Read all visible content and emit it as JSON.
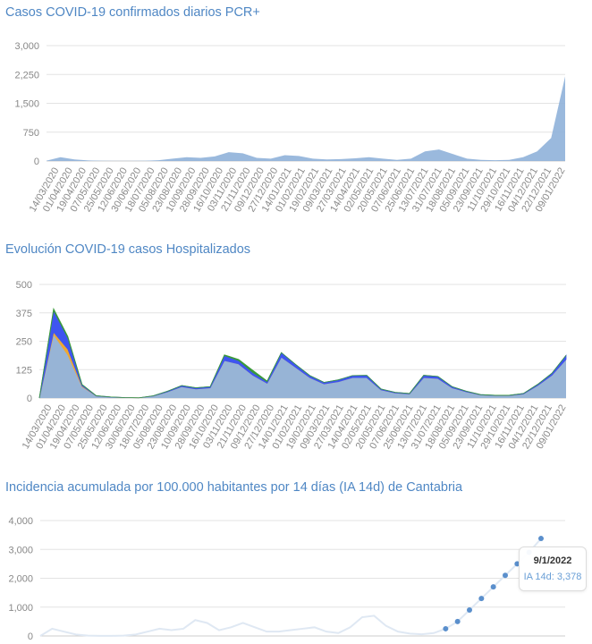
{
  "chart_data": [
    {
      "type": "area",
      "title": "Casos COVID-19 confirmados diarios PCR+",
      "ylim": [
        0,
        3000
      ],
      "yticks": [
        "0",
        "750",
        "1,500",
        "2,250",
        "3,000"
      ],
      "ytick_values": [
        0,
        750,
        1500,
        2250,
        3000
      ],
      "grid": true,
      "categories": [
        "14/03/2020",
        "01/04/2020",
        "19/04/2020",
        "07/05/2020",
        "25/05/2020",
        "12/06/2020",
        "30/06/2020",
        "18/07/2020",
        "05/08/2020",
        "23/08/2020",
        "10/09/2020",
        "28/09/2020",
        "16/10/2020",
        "03/11/2020",
        "21/11/2020",
        "09/12/2020",
        "27/12/2020",
        "14/01/2021",
        "01/02/2021",
        "19/02/2021",
        "09/03/2021",
        "27/03/2021",
        "14/04/2021",
        "02/05/2021",
        "20/05/2021",
        "07/06/2021",
        "25/06/2021",
        "13/07/2021",
        "31/07/2021",
        "18/08/2021",
        "05/09/2021",
        "23/09/2021",
        "11/10/2021",
        "29/10/2021",
        "16/11/2021",
        "04/12/2021",
        "22/12/2021",
        "09/01/2022"
      ],
      "series": [
        {
          "color": "#8fb1d9",
          "values": [
            10,
            100,
            40,
            15,
            5,
            3,
            3,
            5,
            20,
            60,
            100,
            80,
            120,
            230,
            200,
            80,
            60,
            150,
            130,
            60,
            40,
            50,
            70,
            100,
            60,
            30,
            60,
            250,
            300,
            180,
            60,
            30,
            20,
            30,
            100,
            250,
            600,
            2200
          ]
        }
      ]
    },
    {
      "type": "area",
      "title": "Evolución COVID-19 casos  Hospitalizados",
      "ylim": [
        0,
        500
      ],
      "yticks": [
        "0",
        "125",
        "250",
        "375",
        "500"
      ],
      "ytick_values": [
        0,
        125,
        250,
        375,
        500
      ],
      "grid": true,
      "stacked": true,
      "categories": [
        "14/03/2020",
        "01/04/2020",
        "19/04/2020",
        "07/05/2020",
        "25/05/2020",
        "12/06/2020",
        "30/06/2020",
        "18/07/2020",
        "05/08/2020",
        "23/08/2020",
        "10/09/2020",
        "28/09/2020",
        "16/10/2020",
        "03/11/2020",
        "21/11/2020",
        "09/12/2020",
        "27/12/2020",
        "14/01/2021",
        "01/02/2021",
        "19/02/2021",
        "09/03/2021",
        "27/03/2021",
        "14/04/2021",
        "02/05/2021",
        "20/05/2021",
        "07/06/2021",
        "25/06/2021",
        "13/07/2021",
        "31/07/2021",
        "18/08/2021",
        "05/09/2021",
        "23/09/2021",
        "11/10/2021",
        "29/10/2021",
        "16/11/2021",
        "04/12/2021",
        "22/12/2021",
        "09/01/2022"
      ],
      "series": [
        {
          "color": "#97b4d6",
          "values": [
            0,
            280,
            190,
            50,
            9,
            4,
            2,
            1,
            9,
            27,
            50,
            40,
            45,
            165,
            150,
            100,
            65,
            180,
            135,
            90,
            62,
            72,
            90,
            90,
            36,
            22,
            18,
            90,
            86,
            45,
            27,
            14,
            11,
            11,
            18,
            55,
            100,
            170
          ]
        },
        {
          "color": "#f0a830",
          "values": [
            0,
            10,
            25,
            3,
            0,
            0,
            0,
            0,
            0,
            0,
            0,
            0,
            0,
            0,
            0,
            0,
            0,
            0,
            0,
            0,
            0,
            0,
            0,
            0,
            0,
            0,
            0,
            0,
            0,
            0,
            0,
            0,
            0,
            0,
            0,
            0,
            0,
            0
          ]
        },
        {
          "color": "#3f55f0",
          "values": [
            0,
            95,
            50,
            6,
            1,
            1,
            0,
            0,
            1,
            3,
            5,
            5,
            5,
            22,
            15,
            12,
            7,
            20,
            13,
            9,
            7,
            8,
            9,
            10,
            4,
            3,
            2,
            10,
            9,
            5,
            3,
            1,
            1,
            1,
            2,
            5,
            9,
            18
          ]
        },
        {
          "color": "#3a9a3a",
          "values": [
            0,
            8,
            6,
            1,
            0,
            0,
            0,
            0,
            0,
            0,
            0,
            0,
            0,
            3,
            5,
            10,
            3,
            0,
            0,
            0,
            0,
            0,
            0,
            0,
            0,
            0,
            0,
            0,
            0,
            0,
            0,
            0,
            0,
            0,
            0,
            0,
            0,
            0
          ]
        }
      ]
    },
    {
      "type": "line",
      "title": "Incidencia acumulada por 100.000 habitantes por 14 días (IA 14d) de Cantabria",
      "ylim": [
        0,
        4000
      ],
      "yticks": [
        "0",
        "1,000",
        "2,000",
        "3,000",
        "4,000"
      ],
      "ytick_values": [
        0,
        1000,
        2000,
        3000,
        4000
      ],
      "grid": true,
      "series": [
        {
          "color": "#5a8fcc",
          "values": [
            0,
            250,
            150,
            50,
            10,
            5,
            5,
            10,
            50,
            150,
            250,
            200,
            250,
            550,
            450,
            200,
            300,
            450,
            300,
            150,
            150,
            200,
            250,
            300,
            150,
            100,
            300,
            650,
            700,
            350,
            150,
            80,
            60,
            100,
            250,
            500,
            900,
            1300,
            1700,
            2100,
            2500,
            2900,
            3378
          ]
        }
      ],
      "tooltip": {
        "date": "9/1/2022",
        "label": "IA 14d: 3,378"
      }
    }
  ]
}
